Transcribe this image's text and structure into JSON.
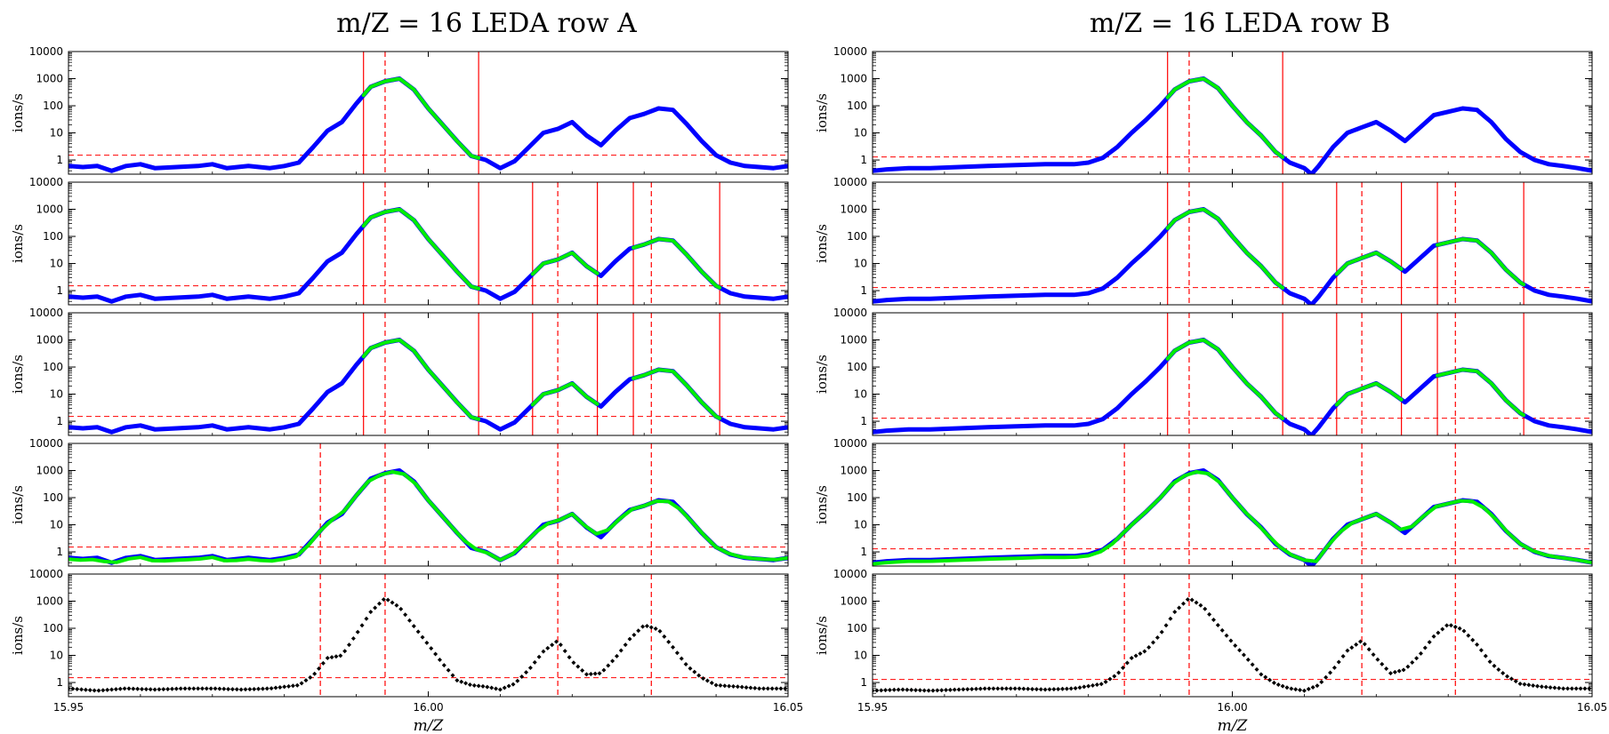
{
  "figure": {
    "panel_titles": [
      "m/Z = 16 LEDA row A",
      "m/Z = 16 LEDA row B"
    ]
  },
  "chart_data": {
    "type": "line",
    "layout": "5 rows x 2 columns of stacked panels sharing x axis",
    "xlabel": "m/Z",
    "ylabel": "ions/s",
    "xlim": [
      15.95,
      16.05
    ],
    "x_ticks": [
      15.95,
      16.0,
      16.05
    ],
    "x_tick_labels": [
      "15.95",
      "16.00",
      "16.05"
    ],
    "yscale": "log",
    "ylim": [
      0.3,
      10000
    ],
    "y_ticks": [
      1,
      10,
      100,
      1000,
      10000
    ],
    "y_tick_labels": [
      "1",
      "10",
      "100",
      "1000",
      "10000"
    ],
    "colors": {
      "data": "#0000ff",
      "fit": "#00ee00",
      "markers": "#ff0000",
      "threshold": "#ff0000",
      "residual": "#000000"
    },
    "columns": [
      {
        "title": "m/Z = 16 LEDA row A",
        "threshold": 1.5,
        "data_points": [
          [
            15.95,
            0.6
          ],
          [
            15.952,
            0.55
          ],
          [
            15.954,
            0.6
          ],
          [
            15.956,
            0.4
          ],
          [
            15.958,
            0.6
          ],
          [
            15.96,
            0.7
          ],
          [
            15.962,
            0.5
          ],
          [
            15.965,
            0.55
          ],
          [
            15.968,
            0.6
          ],
          [
            15.97,
            0.7
          ],
          [
            15.972,
            0.5
          ],
          [
            15.975,
            0.6
          ],
          [
            15.978,
            0.5
          ],
          [
            15.98,
            0.6
          ],
          [
            15.982,
            0.8
          ],
          [
            15.984,
            3
          ],
          [
            15.986,
            12
          ],
          [
            15.988,
            25
          ],
          [
            15.99,
            120
          ],
          [
            15.992,
            500
          ],
          [
            15.994,
            800
          ],
          [
            15.996,
            1000
          ],
          [
            15.998,
            400
          ],
          [
            16.0,
            80
          ],
          [
            16.002,
            20
          ],
          [
            16.004,
            5
          ],
          [
            16.006,
            1.4
          ],
          [
            16.008,
            1.0
          ],
          [
            16.01,
            0.5
          ],
          [
            16.012,
            0.9
          ],
          [
            16.014,
            3
          ],
          [
            16.016,
            10
          ],
          [
            16.018,
            14
          ],
          [
            16.02,
            25
          ],
          [
            16.022,
            8
          ],
          [
            16.024,
            3.5
          ],
          [
            16.026,
            12
          ],
          [
            16.028,
            35
          ],
          [
            16.03,
            50
          ],
          [
            16.032,
            80
          ],
          [
            16.034,
            70
          ],
          [
            16.036,
            20
          ],
          [
            16.038,
            5
          ],
          [
            16.04,
            1.5
          ],
          [
            16.042,
            0.8
          ],
          [
            16.044,
            0.6
          ],
          [
            16.046,
            0.55
          ],
          [
            16.048,
            0.5
          ],
          [
            16.05,
            0.6
          ]
        ],
        "residual_points": [
          [
            15.95,
            0.6
          ],
          [
            15.954,
            0.5
          ],
          [
            15.958,
            0.6
          ],
          [
            15.962,
            0.55
          ],
          [
            15.966,
            0.6
          ],
          [
            15.97,
            0.6
          ],
          [
            15.974,
            0.55
          ],
          [
            15.978,
            0.6
          ],
          [
            15.982,
            0.8
          ],
          [
            15.984,
            1.8
          ],
          [
            15.986,
            8
          ],
          [
            15.988,
            10
          ],
          [
            15.99,
            60
          ],
          [
            15.992,
            400
          ],
          [
            15.994,
            1300
          ],
          [
            15.996,
            600
          ],
          [
            15.998,
            120
          ],
          [
            16.0,
            25
          ],
          [
            16.002,
            5
          ],
          [
            16.004,
            1.2
          ],
          [
            16.006,
            0.8
          ],
          [
            16.008,
            0.7
          ],
          [
            16.01,
            0.55
          ],
          [
            16.012,
            0.9
          ],
          [
            16.014,
            3
          ],
          [
            16.016,
            14
          ],
          [
            16.018,
            35
          ],
          [
            16.02,
            6
          ],
          [
            16.022,
            2
          ],
          [
            16.024,
            2.2
          ],
          [
            16.026,
            8
          ],
          [
            16.028,
            40
          ],
          [
            16.03,
            130
          ],
          [
            16.032,
            90
          ],
          [
            16.034,
            20
          ],
          [
            16.036,
            4
          ],
          [
            16.038,
            1.5
          ],
          [
            16.04,
            0.8
          ],
          [
            16.043,
            0.7
          ],
          [
            16.046,
            0.6
          ],
          [
            16.05,
            0.6
          ]
        ],
        "panels": [
          {
            "solid_markers": [
              15.991,
              16.007
            ],
            "dashed_markers": [
              15.994
            ],
            "fit_ranges": [
              [
                15.991,
                16.007
              ]
            ]
          },
          {
            "solid_markers": [
              15.991,
              16.007,
              16.0145,
              16.0235,
              16.0285,
              16.0405
            ],
            "dashed_markers": [
              15.994,
              16.018,
              16.031
            ],
            "fit_ranges": [
              [
                15.991,
                16.007
              ],
              [
                16.0145,
                16.0235
              ],
              [
                16.0285,
                16.0405
              ]
            ]
          },
          {
            "solid_markers": [
              15.991,
              16.007,
              16.0145,
              16.0235,
              16.0285,
              16.0405
            ],
            "dashed_markers": [
              15.994,
              16.018,
              16.031
            ],
            "fit_ranges": [
              [
                15.991,
                16.007
              ],
              [
                16.0145,
                16.0235
              ],
              [
                16.0285,
                16.0405
              ]
            ]
          },
          {
            "solid_markers": [],
            "dashed_markers": [
              15.985,
              15.994,
              16.018,
              16.031
            ],
            "fit_ranges": [
              [
                15.95,
                16.05
              ]
            ]
          },
          {
            "solid_markers": [],
            "dashed_markers": [
              15.985,
              15.994,
              16.018,
              16.031
            ],
            "fit_ranges": [],
            "residual": true
          }
        ]
      },
      {
        "title": "m/Z = 16 LEDA row B",
        "threshold": 1.3,
        "data_points": [
          [
            15.95,
            0.4
          ],
          [
            15.952,
            0.45
          ],
          [
            15.955,
            0.5
          ],
          [
            15.958,
            0.5
          ],
          [
            15.962,
            0.55
          ],
          [
            15.966,
            0.6
          ],
          [
            15.97,
            0.65
          ],
          [
            15.974,
            0.7
          ],
          [
            15.978,
            0.7
          ],
          [
            15.98,
            0.8
          ],
          [
            15.982,
            1.2
          ],
          [
            15.984,
            3
          ],
          [
            15.986,
            10
          ],
          [
            15.988,
            30
          ],
          [
            15.99,
            100
          ],
          [
            15.992,
            400
          ],
          [
            15.994,
            800
          ],
          [
            15.996,
            1000
          ],
          [
            15.998,
            450
          ],
          [
            16.0,
            100
          ],
          [
            16.002,
            25
          ],
          [
            16.004,
            8
          ],
          [
            16.006,
            2
          ],
          [
            16.008,
            0.8
          ],
          [
            16.01,
            0.5
          ],
          [
            16.011,
            0.25
          ],
          [
            16.012,
            0.6
          ],
          [
            16.014,
            3
          ],
          [
            16.016,
            10
          ],
          [
            16.018,
            16
          ],
          [
            16.02,
            25
          ],
          [
            16.022,
            12
          ],
          [
            16.024,
            5
          ],
          [
            16.026,
            15
          ],
          [
            16.028,
            45
          ],
          [
            16.03,
            60
          ],
          [
            16.032,
            80
          ],
          [
            16.034,
            70
          ],
          [
            16.036,
            25
          ],
          [
            16.038,
            6
          ],
          [
            16.04,
            2
          ],
          [
            16.042,
            1
          ],
          [
            16.044,
            0.7
          ],
          [
            16.046,
            0.6
          ],
          [
            16.048,
            0.5
          ],
          [
            16.05,
            0.4
          ]
        ],
        "residual_points": [
          [
            15.95,
            0.5
          ],
          [
            15.954,
            0.55
          ],
          [
            15.958,
            0.5
          ],
          [
            15.962,
            0.55
          ],
          [
            15.966,
            0.6
          ],
          [
            15.97,
            0.6
          ],
          [
            15.974,
            0.55
          ],
          [
            15.978,
            0.6
          ],
          [
            15.982,
            0.9
          ],
          [
            15.984,
            2
          ],
          [
            15.986,
            8
          ],
          [
            15.988,
            15
          ],
          [
            15.99,
            60
          ],
          [
            15.992,
            400
          ],
          [
            15.994,
            1300
          ],
          [
            15.996,
            600
          ],
          [
            15.998,
            130
          ],
          [
            16.0,
            30
          ],
          [
            16.002,
            8
          ],
          [
            16.004,
            2
          ],
          [
            16.006,
            0.9
          ],
          [
            16.008,
            0.6
          ],
          [
            16.01,
            0.5
          ],
          [
            16.012,
            0.8
          ],
          [
            16.014,
            3
          ],
          [
            16.016,
            15
          ],
          [
            16.018,
            35
          ],
          [
            16.02,
            8
          ],
          [
            16.022,
            2.2
          ],
          [
            16.024,
            3
          ],
          [
            16.026,
            10
          ],
          [
            16.028,
            50
          ],
          [
            16.03,
            140
          ],
          [
            16.032,
            90
          ],
          [
            16.034,
            25
          ],
          [
            16.036,
            5
          ],
          [
            16.038,
            1.8
          ],
          [
            16.04,
            0.9
          ],
          [
            16.043,
            0.7
          ],
          [
            16.046,
            0.6
          ],
          [
            16.05,
            0.6
          ]
        ],
        "panels": [
          {
            "solid_markers": [
              15.991,
              16.007
            ],
            "dashed_markers": [
              15.994
            ],
            "fit_ranges": [
              [
                15.991,
                16.007
              ]
            ]
          },
          {
            "solid_markers": [
              15.991,
              16.007,
              16.0145,
              16.0235,
              16.0285,
              16.0405
            ],
            "dashed_markers": [
              15.994,
              16.018,
              16.031
            ],
            "fit_ranges": [
              [
                15.991,
                16.007
              ],
              [
                16.0145,
                16.0235
              ],
              [
                16.0285,
                16.0405
              ]
            ]
          },
          {
            "solid_markers": [
              15.991,
              16.007,
              16.0145,
              16.0235,
              16.0285,
              16.0405
            ],
            "dashed_markers": [
              15.994,
              16.018,
              16.031
            ],
            "fit_ranges": [
              [
                15.991,
                16.007
              ],
              [
                16.0145,
                16.0235
              ],
              [
                16.0285,
                16.0405
              ]
            ]
          },
          {
            "solid_markers": [],
            "dashed_markers": [
              15.985,
              15.994,
              16.018,
              16.031
            ],
            "fit_ranges": [
              [
                15.95,
                16.05
              ]
            ]
          },
          {
            "solid_markers": [],
            "dashed_markers": [
              15.985,
              15.994,
              16.018,
              16.031
            ],
            "fit_ranges": [],
            "residual": true
          }
        ]
      }
    ]
  }
}
